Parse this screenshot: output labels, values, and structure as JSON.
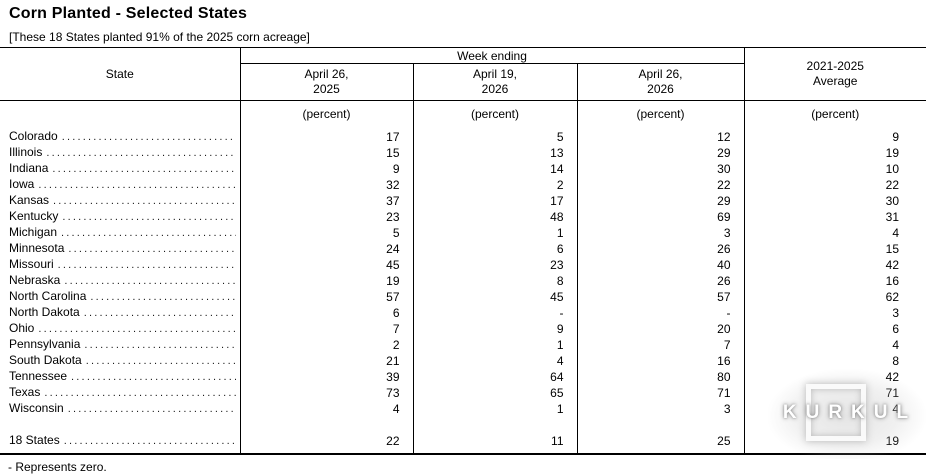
{
  "title": "Corn Planted - Selected States",
  "subtitle": "[These 18 States planted 91% of the 2025 corn acreage]",
  "table": {
    "state_col_header": "State",
    "week_ending_header": "Week ending",
    "week_columns": [
      "April 26,\n2025",
      "April 19,\n2026",
      "April 26,\n2026"
    ],
    "average_col_header": "2021-2025\nAverage",
    "unit_label": "(percent)",
    "rows": [
      {
        "state": "Colorado",
        "values": [
          "17",
          "5",
          "12",
          "9"
        ]
      },
      {
        "state": "Illinois",
        "values": [
          "15",
          "13",
          "29",
          "19"
        ]
      },
      {
        "state": "Indiana",
        "values": [
          "9",
          "14",
          "30",
          "10"
        ]
      },
      {
        "state": "Iowa",
        "values": [
          "32",
          "2",
          "22",
          "22"
        ]
      },
      {
        "state": "Kansas",
        "values": [
          "37",
          "17",
          "29",
          "30"
        ]
      },
      {
        "state": "Kentucky",
        "values": [
          "23",
          "48",
          "69",
          "31"
        ]
      },
      {
        "state": "Michigan",
        "values": [
          "5",
          "1",
          "3",
          "4"
        ]
      },
      {
        "state": "Minnesota",
        "values": [
          "24",
          "6",
          "26",
          "15"
        ]
      },
      {
        "state": "Missouri",
        "values": [
          "45",
          "23",
          "40",
          "42"
        ]
      },
      {
        "state": "Nebraska",
        "values": [
          "19",
          "8",
          "26",
          "16"
        ]
      },
      {
        "state": "North Carolina",
        "values": [
          "57",
          "45",
          "57",
          "62"
        ]
      },
      {
        "state": "North Dakota",
        "values": [
          "6",
          "-",
          "-",
          "3"
        ]
      },
      {
        "state": "Ohio",
        "values": [
          "7",
          "9",
          "20",
          "6"
        ]
      },
      {
        "state": "Pennsylvania",
        "values": [
          "2",
          "1",
          "7",
          "4"
        ]
      },
      {
        "state": "South Dakota",
        "values": [
          "21",
          "4",
          "16",
          "8"
        ]
      },
      {
        "state": "Tennessee",
        "values": [
          "39",
          "64",
          "80",
          "42"
        ]
      },
      {
        "state": "Texas",
        "values": [
          "73",
          "65",
          "71",
          "71"
        ]
      },
      {
        "state": "Wisconsin",
        "values": [
          "4",
          "1",
          "3",
          "4"
        ]
      }
    ],
    "total_row": {
      "state": "18 States",
      "values": [
        "22",
        "11",
        "25",
        "19"
      ]
    }
  },
  "footnote": "- Represents zero.",
  "watermark": {
    "text": "KURKUL"
  }
}
